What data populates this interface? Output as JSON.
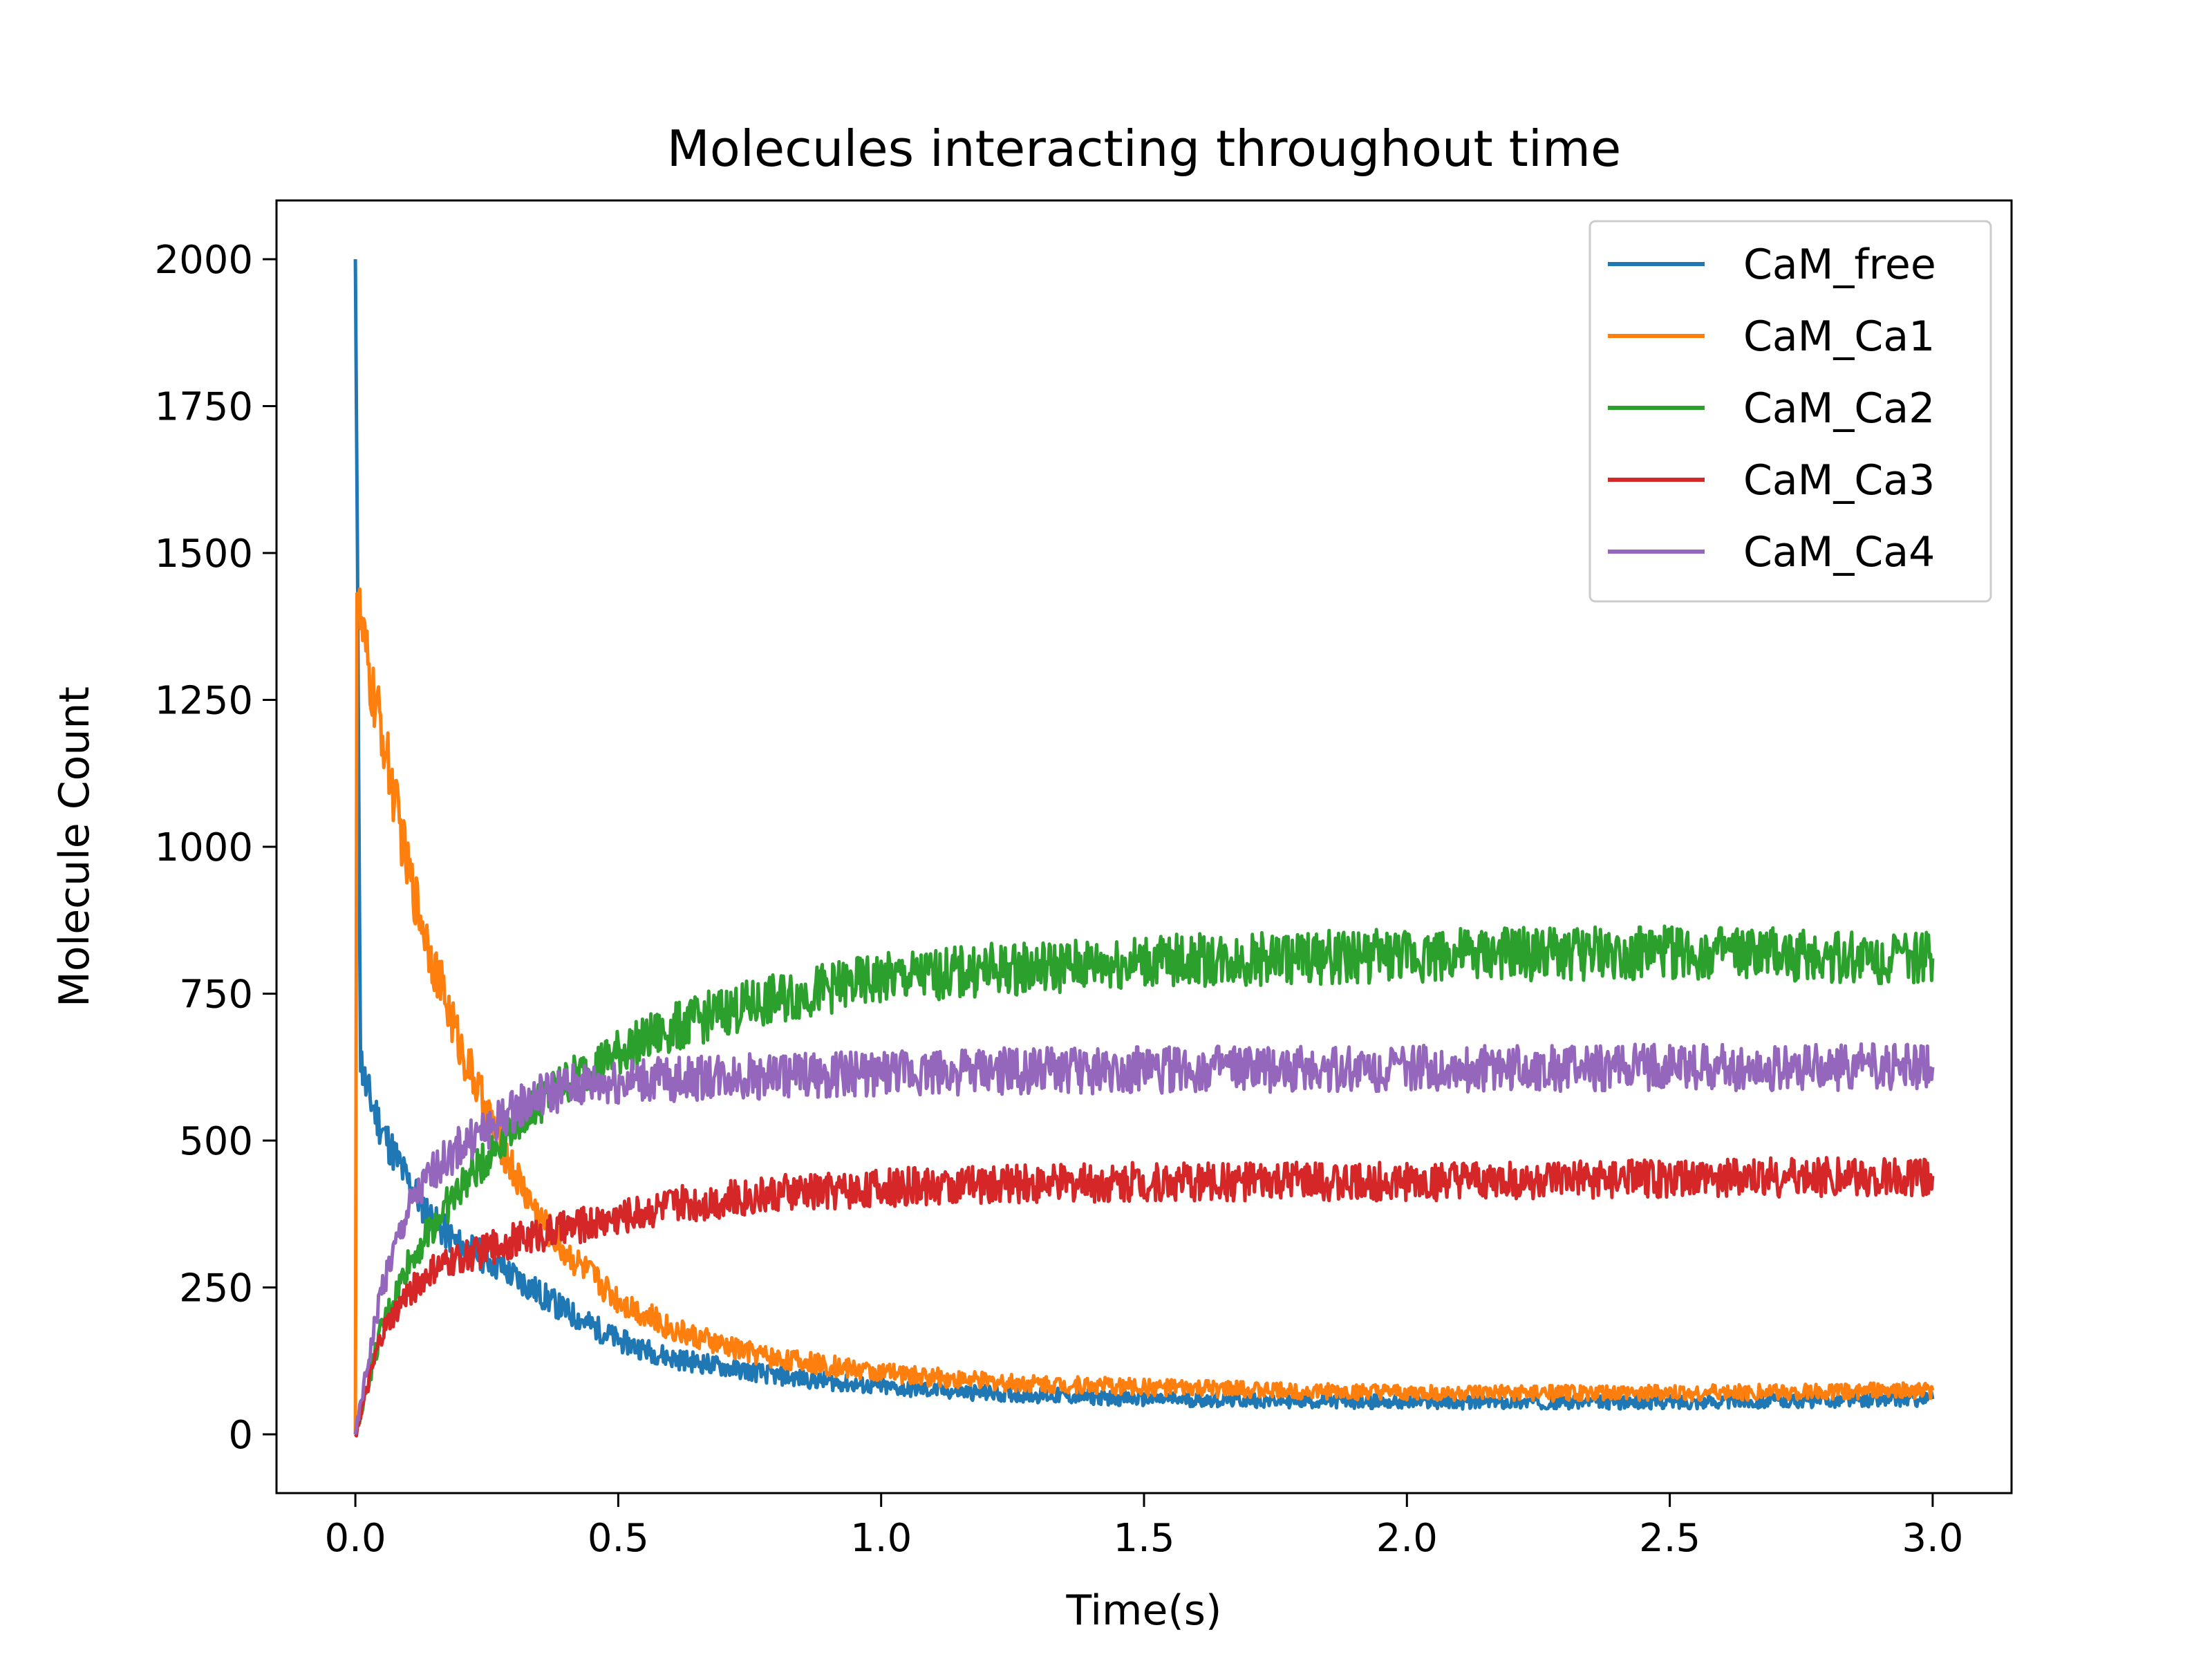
{
  "chart_data": {
    "type": "line",
    "title": "Molecules interacting throughout time",
    "xlabel": "Time(s)",
    "ylabel": "Molecule Count",
    "xlim": [
      -0.15,
      3.15
    ],
    "ylim": [
      -100,
      2100
    ],
    "xticks": [
      "0.0",
      "0.5",
      "1.0",
      "1.5",
      "2.0",
      "2.5",
      "3.0"
    ],
    "yticks": [
      "0",
      "250",
      "500",
      "750",
      "1000",
      "1250",
      "1500",
      "1750",
      "2000"
    ],
    "grid": false,
    "legend_position": "top-right",
    "series": [
      {
        "name": "CaM_free",
        "color": "#1f77b4",
        "x": [
          0,
          0.01,
          0.02,
          0.05,
          0.1,
          0.15,
          0.2,
          0.25,
          0.3,
          0.35,
          0.4,
          0.5,
          0.6,
          0.7,
          0.8,
          1.0,
          1.2,
          1.5,
          2.0,
          2.5,
          3.0
        ],
        "y": [
          2000,
          640,
          590,
          520,
          430,
          360,
          320,
          300,
          270,
          240,
          210,
          160,
          130,
          115,
          100,
          80,
          70,
          60,
          55,
          55,
          60
        ]
      },
      {
        "name": "CaM_Ca1",
        "color": "#ff7f0e",
        "x": [
          0,
          0.003,
          0.01,
          0.03,
          0.05,
          0.1,
          0.15,
          0.2,
          0.25,
          0.3,
          0.35,
          0.4,
          0.5,
          0.6,
          0.7,
          0.8,
          1.0,
          1.2,
          1.5,
          2.0,
          2.5,
          3.0
        ],
        "y": [
          0,
          1440,
          1380,
          1270,
          1200,
          960,
          800,
          660,
          550,
          450,
          370,
          310,
          230,
          180,
          150,
          130,
          105,
          90,
          80,
          70,
          70,
          75
        ]
      },
      {
        "name": "CaM_Ca2",
        "color": "#2ca02c",
        "x": [
          0,
          0.05,
          0.1,
          0.15,
          0.2,
          0.25,
          0.3,
          0.4,
          0.5,
          0.6,
          0.7,
          0.8,
          0.9,
          1.0,
          1.2,
          1.5,
          2.0,
          2.5,
          3.0
        ],
        "y": [
          0,
          180,
          290,
          360,
          420,
          470,
          530,
          600,
          650,
          690,
          720,
          740,
          760,
          775,
          790,
          805,
          815,
          820,
          810
        ]
      },
      {
        "name": "CaM_Ca3",
        "color": "#d62728",
        "x": [
          0,
          0.05,
          0.1,
          0.15,
          0.2,
          0.3,
          0.4,
          0.5,
          0.6,
          0.7,
          0.8,
          1.0,
          1.2,
          1.5,
          2.0,
          2.5,
          3.0
        ],
        "y": [
          0,
          170,
          240,
          280,
          300,
          330,
          350,
          370,
          390,
          400,
          410,
          420,
          425,
          430,
          430,
          435,
          440
        ]
      },
      {
        "name": "CaM_Ca4",
        "color": "#9467bd",
        "x": [
          0,
          0.05,
          0.1,
          0.15,
          0.2,
          0.25,
          0.3,
          0.35,
          0.4,
          0.5,
          0.6,
          0.7,
          0.8,
          1.0,
          1.2,
          1.5,
          2.0,
          2.5,
          3.0
        ],
        "y": [
          0,
          250,
          380,
          450,
          490,
          520,
          550,
          575,
          590,
          600,
          605,
          610,
          610,
          615,
          618,
          620,
          622,
          625,
          625
        ]
      }
    ]
  }
}
